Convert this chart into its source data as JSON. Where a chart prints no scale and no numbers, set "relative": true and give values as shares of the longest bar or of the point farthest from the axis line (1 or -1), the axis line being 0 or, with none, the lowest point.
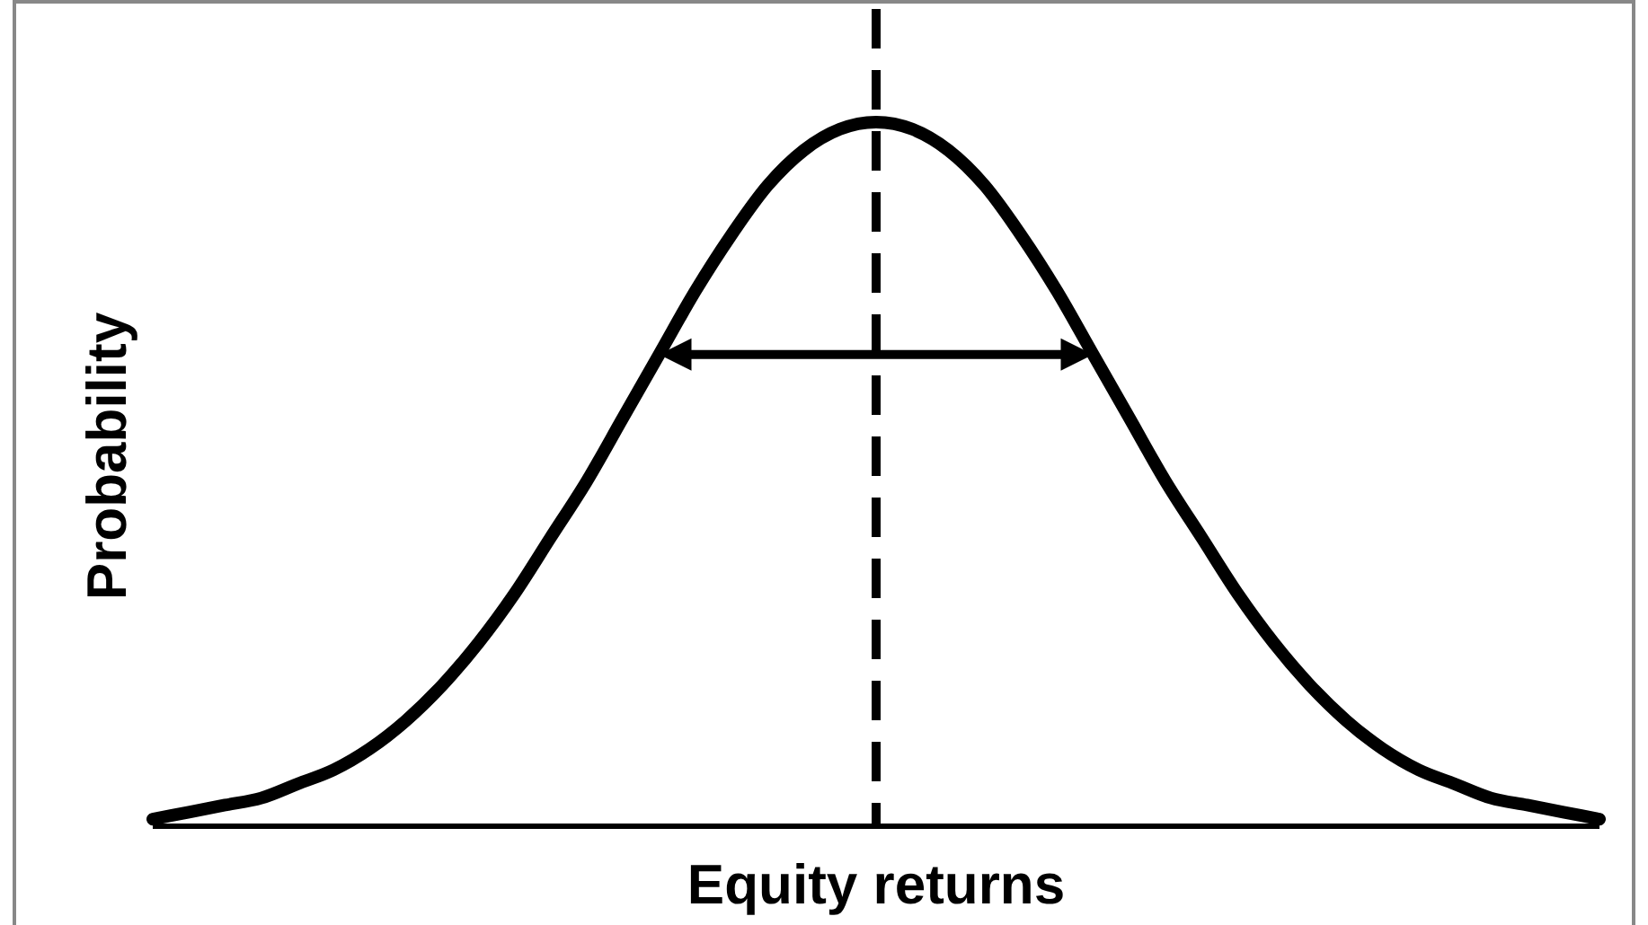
{
  "chart_data": {
    "type": "line",
    "xlabel": "Equity returns",
    "ylabel": "Probability",
    "relative": true,
    "line_style": "solid",
    "categories": [
      null,
      null,
      null,
      null,
      null,
      null,
      null,
      null,
      null,
      null,
      null,
      null,
      null,
      null,
      null,
      null,
      null,
      null,
      null,
      null,
      null,
      null,
      null,
      null,
      null,
      null,
      null,
      null,
      null,
      null,
      null,
      null,
      null,
      null,
      null,
      null,
      null,
      null,
      null,
      null,
      null
    ],
    "series": [
      {
        "color": "#000000",
        "values": [
          0.01,
          0.02,
          0.03,
          0.04,
          0.06,
          0.08,
          0.11,
          0.15,
          0.2,
          0.26,
          0.33,
          0.41,
          0.49,
          0.58,
          0.67,
          0.76,
          0.84,
          0.91,
          0.96,
          0.99,
          1,
          0.99,
          0.96,
          0.91,
          0.84,
          0.76,
          0.67,
          0.58,
          0.49,
          0.41,
          0.33,
          0.26,
          0.2,
          0.15,
          0.11,
          0.08,
          0.06,
          0.04,
          0.03,
          0.02,
          0.01
        ]
      }
    ]
  }
}
